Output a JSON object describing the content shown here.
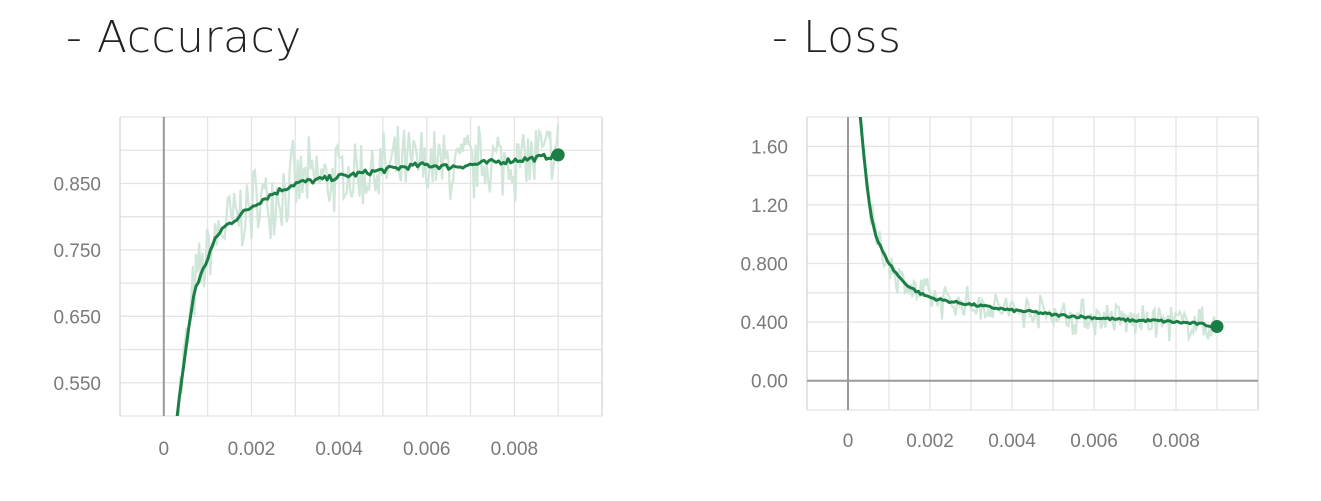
{
  "titles": {
    "accuracy": "- Accuracy",
    "loss": "- Loss"
  },
  "colors": {
    "line": "#1b7f45",
    "raw": "#cfe6d8",
    "grid": "#e4e4e4",
    "axis": "#9a9a9a"
  },
  "chart_data": [
    {
      "type": "line",
      "title": "- Accuracy",
      "xlabel": "",
      "ylabel": "",
      "xlim": [
        -0.001,
        0.01
      ],
      "ylim": [
        0.5,
        0.95
      ],
      "grid": true,
      "x_ticks": [
        "0",
        "0.002",
        "0.004",
        "0.006",
        "0.008"
      ],
      "y_ticks": [
        "0.550",
        "0.650",
        "0.750",
        "0.850"
      ],
      "series": [
        {
          "x": [
            0.0003,
            0.0005,
            0.0007,
            0.0009,
            0.0011,
            0.0013,
            0.0015,
            0.0018,
            0.0021,
            0.0025,
            0.003,
            0.0035,
            0.004,
            0.0045,
            0.005,
            0.0055,
            0.006,
            0.0065,
            0.007,
            0.0075,
            0.008,
            0.0085,
            0.009
          ],
          "y": [
            0.5,
            0.6,
            0.69,
            0.72,
            0.755,
            0.78,
            0.79,
            0.805,
            0.82,
            0.835,
            0.85,
            0.855,
            0.86,
            0.865,
            0.87,
            0.875,
            0.878,
            0.875,
            0.878,
            0.882,
            0.885,
            0.888,
            0.893
          ]
        }
      ]
    },
    {
      "type": "line",
      "title": "- Loss",
      "xlabel": "",
      "ylabel": "",
      "xlim": [
        -0.001,
        0.01
      ],
      "ylim": [
        -0.2,
        1.8
      ],
      "grid": true,
      "x_ticks": [
        "0",
        "0.002",
        "0.004",
        "0.006",
        "0.008"
      ],
      "y_ticks": [
        "0.00",
        "0.400",
        "0.800",
        "1.20",
        "1.60"
      ],
      "series": [
        {
          "x": [
            0.0003,
            0.0004,
            0.0005,
            0.0006,
            0.0007,
            0.0009,
            0.0011,
            0.0013,
            0.0015,
            0.0018,
            0.0021,
            0.0025,
            0.003,
            0.0035,
            0.004,
            0.0045,
            0.005,
            0.0055,
            0.006,
            0.0065,
            0.007,
            0.0075,
            0.008,
            0.0085,
            0.009
          ],
          "y": [
            1.8,
            1.5,
            1.25,
            1.08,
            0.97,
            0.85,
            0.76,
            0.69,
            0.64,
            0.59,
            0.56,
            0.54,
            0.52,
            0.5,
            0.48,
            0.47,
            0.45,
            0.44,
            0.43,
            0.42,
            0.41,
            0.41,
            0.4,
            0.39,
            0.37
          ]
        }
      ]
    }
  ]
}
